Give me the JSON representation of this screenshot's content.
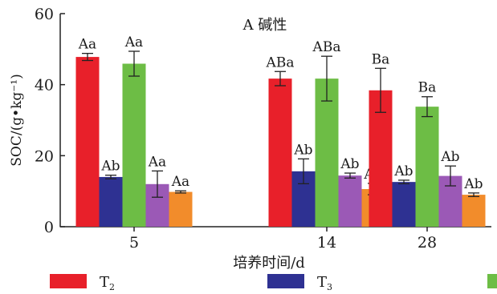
{
  "chart_data": {
    "type": "bar",
    "title": "A 碱性",
    "xlabel": "培养时间/d",
    "ylabel": "SOC/(g•kg⁻¹)",
    "ylim": [
      0,
      60
    ],
    "yticks": [
      0,
      20,
      40,
      60
    ],
    "categories": [
      "5",
      "14",
      "28"
    ],
    "grid": false,
    "legend_position": "bottom",
    "series": [
      {
        "name": "T₂",
        "legend_main": "T",
        "legend_sub": "2",
        "color": "#e8202a",
        "values": [
          47.8,
          41.7,
          38.4
        ],
        "errors": [
          1.0,
          2.0,
          6.2
        ],
        "labels": [
          "Aa",
          "ABa",
          "Ba"
        ]
      },
      {
        "name": "T₃",
        "legend_main": "T",
        "legend_sub": "3",
        "color": "#2e3192",
        "values": [
          14.0,
          15.6,
          12.6
        ],
        "errors": [
          0.5,
          3.5,
          0.5
        ],
        "labels": [
          "Ab",
          "Ab",
          "Ab"
        ]
      },
      {
        "name": "",
        "legend_main": "",
        "legend_sub": "",
        "color": "#6dbd45",
        "values": [
          45.9,
          41.7,
          33.8
        ],
        "errors": [
          3.5,
          6.3,
          2.8
        ],
        "labels": [
          "Aa",
          "ABa",
          "Ba"
        ]
      },
      {
        "name": "",
        "legend_main": "",
        "legend_sub": "",
        "color": "#9b59b6",
        "values": [
          12.0,
          14.4,
          14.3
        ],
        "errors": [
          3.7,
          0.7,
          2.8
        ],
        "labels": [
          "Aa",
          "Ab",
          "Ab"
        ]
      },
      {
        "name": "",
        "legend_main": "",
        "legend_sub": "",
        "color": "#f28c2b",
        "values": [
          9.8,
          10.6,
          9.0
        ],
        "errors": [
          0.3,
          1.6,
          0.5
        ],
        "labels": [
          "Aa",
          "Ab",
          "Ab"
        ]
      }
    ]
  }
}
